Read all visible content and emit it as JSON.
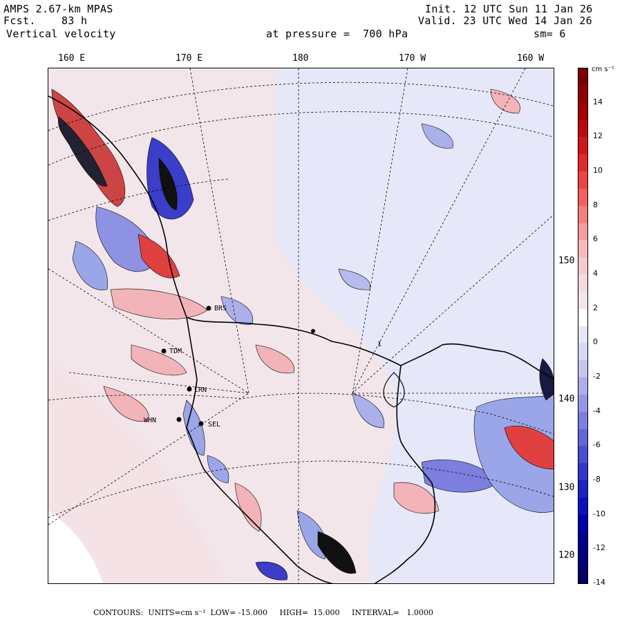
{
  "header": {
    "model": "AMPS 2.67-km MPAS",
    "forecast": "Fcst.    83 h",
    "field": "Vertical velocity",
    "init": "Init. 12 UTC Sun 11 Jan 26",
    "valid": "Valid. 23 UTC Wed 14 Jan 26",
    "pressure": "at pressure =  700 hPa",
    "smoothing": "sm= 6"
  },
  "lon_ticks_top": [
    "160 E",
    "170 E",
    "180",
    "170 W",
    "160 W"
  ],
  "lon_ticks_right": [
    "150 W",
    "140 W",
    "130 W",
    "120 W"
  ],
  "stations": [
    {
      "code": "TDM"
    },
    {
      "code": "LRN"
    },
    {
      "code": "WHN"
    },
    {
      "code": "SEL"
    },
    {
      "code": "BRS"
    },
    {
      "code": "1"
    }
  ],
  "colorbar": {
    "unit": "cm s⁻¹",
    "labels": [
      "14",
      "12",
      "10",
      "8",
      "6",
      "4",
      "2",
      "0",
      "-2",
      "-4",
      "-6",
      "-8",
      "-10",
      "-12",
      "-14"
    ],
    "colors": [
      "#7a0000",
      "#8e0000",
      "#a30000",
      "#bb0a0a",
      "#d01818",
      "#e22a2a",
      "#ee4444",
      "#f46060",
      "#f47e7e",
      "#f59c9c",
      "#f6b8b8",
      "#f5cccc",
      "#f4dcdc",
      "#f3e6ea",
      "#ffffff",
      "#e6e7f8",
      "#d7d8f4",
      "#c4c6f0",
      "#adaeea",
      "#9597e4",
      "#7c7fde",
      "#6366d6",
      "#4a4ed0",
      "#3236ca",
      "#1c22c4",
      "#0a10bb",
      "#0000a8",
      "#00008e",
      "#00007a",
      "#000066"
    ]
  },
  "footer": {
    "contours": "CONTOURS:  UNITS=cm s⁻¹  LOW= -15.000     HIGH=  15.000     INTERVAL=   1.0000"
  },
  "map_legend": {
    "positive_color": "#f4b8bf",
    "negative_color": "#9aa6e8",
    "neutral_color": "#f3e6ea"
  }
}
